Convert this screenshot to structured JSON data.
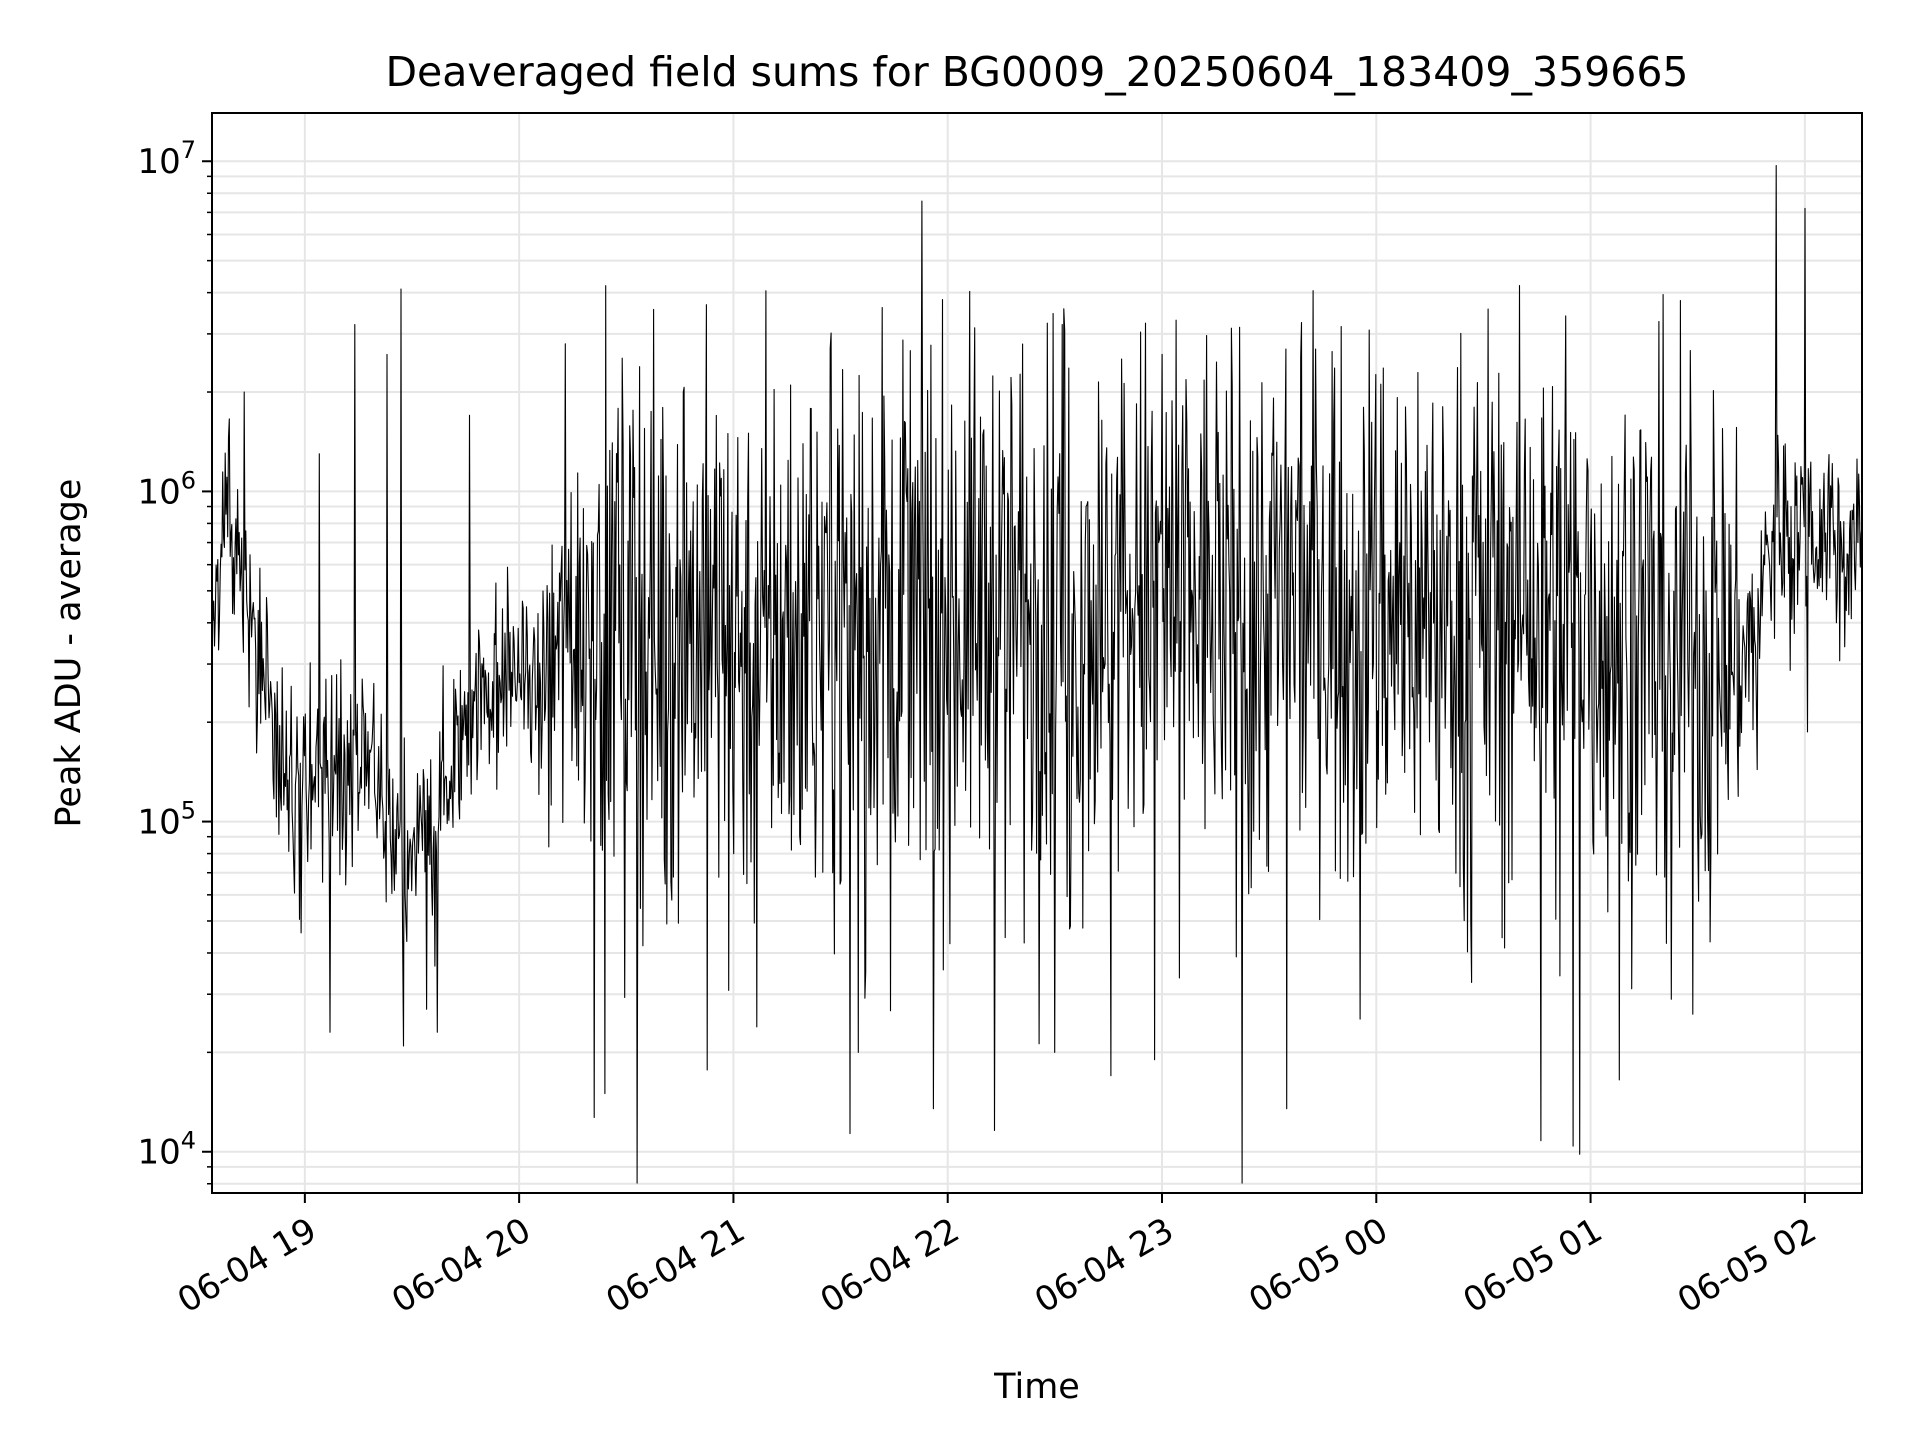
{
  "chart_data": {
    "type": "line",
    "title": "Deaveraged field sums for BG0009_20250604_183409_359665",
    "xlabel": "Time",
    "ylabel": "Peak ADU - average",
    "yscale": "log",
    "grid": true,
    "line_color": "#000000",
    "grid_color": "#e6e6e6",
    "xlim": [
      "2025-06-04 18:34",
      "2025-06-05 02:16"
    ],
    "ylim": [
      7500,
      14000000
    ],
    "x_ticks": [
      "2025-06-04 19:00",
      "2025-06-04 20:00",
      "2025-06-04 21:00",
      "2025-06-04 22:00",
      "2025-06-04 23:00",
      "2025-06-05 00:00",
      "2025-06-05 01:00",
      "2025-06-05 02:00"
    ],
    "x_tick_labels": [
      "06-04 19",
      "06-04 20",
      "06-04 21",
      "06-04 22",
      "06-04 23",
      "06-05 00",
      "06-05 01",
      "06-05 02"
    ],
    "y_ticks": [
      {
        "value": 10000,
        "base": "10",
        "exp": "4"
      },
      {
        "value": 100000,
        "base": "10",
        "exp": "5"
      },
      {
        "value": 1000000,
        "base": "10",
        "exp": "6"
      },
      {
        "value": 10000000,
        "base": "10",
        "exp": "7"
      }
    ],
    "series": [
      {
        "points": [
          [
            "2025-06-04 18:34",
            500000
          ],
          [
            "2025-06-04 18:38",
            900000
          ],
          [
            "2025-06-04 18:42",
            600000
          ],
          [
            "2025-06-04 18:46",
            400000
          ],
          [
            "2025-06-04 18:50",
            250000
          ],
          [
            "2025-06-04 18:54",
            150000
          ],
          [
            "2025-06-04 18:58",
            110000
          ],
          [
            "2025-06-04 19:02",
            140000
          ],
          [
            "2025-06-04 19:06",
            170000
          ],
          [
            "2025-06-04 19:10",
            150000
          ],
          [
            "2025-06-04 19:14",
            140000
          ],
          [
            "2025-06-04 19:18",
            150000
          ],
          [
            "2025-06-04 19:22",
            120000
          ],
          [
            "2025-06-04 19:26",
            90000
          ],
          [
            "2025-06-04 19:30",
            80000
          ],
          [
            "2025-06-04 19:34",
            90000
          ],
          [
            "2025-06-04 19:38",
            120000
          ],
          [
            "2025-06-04 19:42",
            160000
          ],
          [
            "2025-06-04 19:46",
            210000
          ],
          [
            "2025-06-04 19:50",
            260000
          ],
          [
            "2025-06-04 19:54",
            280000
          ],
          [
            "2025-06-04 19:58",
            300000
          ],
          [
            "2025-06-04 20:02",
            260000
          ],
          [
            "2025-06-04 20:06",
            250000
          ],
          [
            "2025-06-04 20:10",
            330000
          ],
          [
            "2025-06-04 20:14",
            400000
          ],
          [
            "2025-06-04 20:18",
            430000
          ],
          [
            "2025-06-04 20:22",
            450000
          ],
          [
            "2025-06-04 20:26",
            480000
          ],
          [
            "2025-06-04 20:30",
            420000
          ],
          [
            "2025-06-04 20:38",
            400000
          ],
          [
            "2025-06-04 20:46",
            420000
          ],
          [
            "2025-06-04 20:54",
            400000
          ],
          [
            "2025-06-04 21:02",
            360000
          ],
          [
            "2025-06-04 21:10",
            340000
          ],
          [
            "2025-06-04 21:20",
            420000
          ],
          [
            "2025-06-04 21:30",
            460000
          ],
          [
            "2025-06-04 21:40",
            480000
          ],
          [
            "2025-06-04 21:50",
            460000
          ],
          [
            "2025-06-04 22:00",
            430000
          ],
          [
            "2025-06-04 22:10",
            440000
          ],
          [
            "2025-06-04 22:20",
            480000
          ],
          [
            "2025-06-04 22:30",
            470000
          ],
          [
            "2025-06-04 22:40",
            460000
          ],
          [
            "2025-06-04 22:50",
            480000
          ],
          [
            "2025-06-04 23:00",
            470000
          ],
          [
            "2025-06-04 23:10",
            450000
          ],
          [
            "2025-06-04 23:20",
            480000
          ],
          [
            "2025-06-04 23:30",
            470000
          ],
          [
            "2025-06-04 23:40",
            500000
          ],
          [
            "2025-06-04 23:50",
            490000
          ],
          [
            "2025-06-05 00:00",
            470000
          ],
          [
            "2025-06-05 00:10",
            460000
          ],
          [
            "2025-06-05 00:20",
            450000
          ],
          [
            "2025-06-05 00:30",
            470000
          ],
          [
            "2025-06-05 00:40",
            460000
          ],
          [
            "2025-06-05 00:50",
            450000
          ],
          [
            "2025-06-05 01:00",
            440000
          ],
          [
            "2025-06-05 01:10",
            420000
          ],
          [
            "2025-06-05 01:20",
            380000
          ],
          [
            "2025-06-05 01:30",
            340000
          ],
          [
            "2025-06-05 01:40",
            320000
          ],
          [
            "2025-06-05 01:46",
            350000
          ],
          [
            "2025-06-05 01:50",
            700000
          ],
          [
            "2025-06-05 01:55",
            850000
          ],
          [
            "2025-06-05 02:00",
            800000
          ],
          [
            "2025-06-05 02:05",
            800000
          ],
          [
            "2025-06-05 02:10",
            750000
          ],
          [
            "2025-06-05 02:16",
            650000
          ]
        ],
        "spikes_up": [
          [
            "2025-06-04 18:43",
            2000000
          ],
          [
            "2025-06-04 19:04",
            1300000
          ],
          [
            "2025-06-04 19:14",
            3200000
          ],
          [
            "2025-06-04 19:23",
            2600000
          ],
          [
            "2025-06-04 19:27",
            4100000
          ],
          [
            "2025-06-04 19:46",
            1700000
          ],
          [
            "2025-06-04 20:13",
            2800000
          ],
          [
            "2025-06-04 20:46",
            2000000
          ],
          [
            "2025-06-04 21:16",
            2100000
          ],
          [
            "2025-06-04 22:32",
            3200000
          ],
          [
            "2025-06-04 23:00",
            2600000
          ],
          [
            "2025-06-04 23:04",
            3300000
          ],
          [
            "2025-06-04 23:43",
            2700000
          ],
          [
            "2025-06-05 00:53",
            3400000
          ],
          [
            "2025-06-05 01:52",
            9700000
          ],
          [
            "2025-06-05 02:00",
            7200000
          ]
        ],
        "spikes_down": [
          [
            "2025-06-04 18:59",
            46000
          ],
          [
            "2025-06-04 19:07",
            23000
          ],
          [
            "2025-06-04 19:34",
            27000
          ],
          [
            "2025-06-04 19:37",
            23000
          ],
          [
            "2025-06-04 20:21",
            12700
          ],
          [
            "2025-06-04 20:24",
            15000
          ],
          [
            "2025-06-04 21:35",
            20000
          ],
          [
            "2025-06-04 21:56",
            13500
          ],
          [
            "2025-06-04 22:13",
            11600
          ],
          [
            "2025-06-04 22:30",
            20000
          ],
          [
            "2025-06-04 22:58",
            19000
          ],
          [
            "2025-06-04 23:35",
            13500
          ],
          [
            "2025-06-05 00:46",
            10800
          ],
          [
            "2025-06-05 00:55",
            10400
          ],
          [
            "2025-06-05 01:08",
            16500
          ]
        ]
      }
    ]
  }
}
